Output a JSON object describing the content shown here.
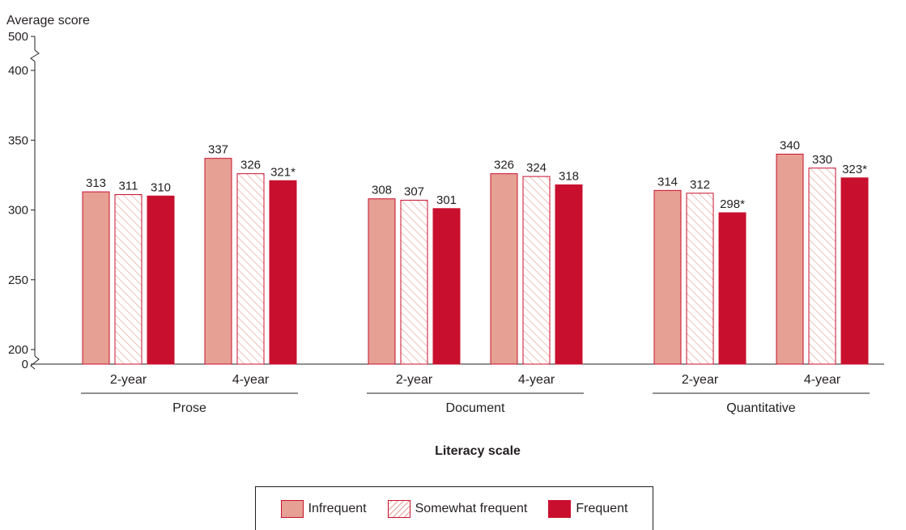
{
  "colors": {
    "infrequent": "#e6a094",
    "frequent": "#c8102e",
    "outline": "#c8102e",
    "axis": "#231f20"
  },
  "chart_data": {
    "type": "bar",
    "ylabel": "Average score",
    "xlabel": "Literacy scale",
    "yticks": [
      "0",
      "200",
      "250",
      "300",
      "350",
      "400",
      "500"
    ],
    "ylim": [
      200,
      400
    ],
    "axis_break": "between 0 and 200, and between 400 and 500",
    "groups": [
      {
        "label": "Prose",
        "subcategories": [
          "2-year",
          "4-year"
        ]
      },
      {
        "label": "Document",
        "subcategories": [
          "2-year",
          "4-year"
        ]
      },
      {
        "label": "Quantitative",
        "subcategories": [
          "2-year",
          "4-year"
        ]
      }
    ],
    "series": [
      {
        "name": "Infrequent",
        "pattern": "solid-light",
        "values": [
          313,
          337,
          308,
          326,
          314,
          340
        ],
        "labels": [
          "313",
          "337",
          "308",
          "326",
          "314",
          "340"
        ]
      },
      {
        "name": "Somewhat frequent",
        "pattern": "hatched",
        "values": [
          311,
          326,
          307,
          324,
          312,
          330
        ],
        "labels": [
          "311",
          "326",
          "307",
          "324",
          "312",
          "330"
        ]
      },
      {
        "name": "Frequent",
        "pattern": "solid-dark",
        "values": [
          310,
          321,
          301,
          318,
          298,
          323
        ],
        "labels": [
          "310",
          "321*",
          "301",
          "318",
          "298*",
          "323*"
        ]
      }
    ],
    "legend": {
      "position": "bottom-center"
    }
  }
}
